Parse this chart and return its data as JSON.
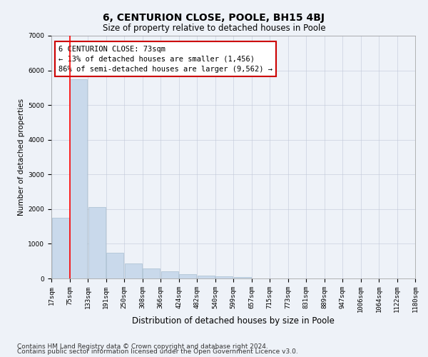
{
  "title": "6, CENTURION CLOSE, POOLE, BH15 4BJ",
  "subtitle": "Size of property relative to detached houses in Poole",
  "xlabel": "Distribution of detached houses by size in Poole",
  "ylabel": "Number of detached properties",
  "footnote1": "Contains HM Land Registry data © Crown copyright and database right 2024.",
  "footnote2": "Contains public sector information licensed under the Open Government Licence v3.0.",
  "annotation_title": "6 CENTURION CLOSE: 73sqm",
  "annotation_line1": "← 13% of detached houses are smaller (1,456)",
  "annotation_line2": "86% of semi-detached houses are larger (9,562) →",
  "bar_heights": [
    1750,
    5750,
    2050,
    750,
    430,
    280,
    200,
    130,
    90,
    60,
    40,
    0,
    0,
    0,
    0,
    0,
    0,
    0,
    0,
    0
  ],
  "tick_labels": [
    "17sqm",
    "75sqm",
    "133sqm",
    "191sqm",
    "250sqm",
    "308sqm",
    "366sqm",
    "424sqm",
    "482sqm",
    "540sqm",
    "599sqm",
    "657sqm",
    "715sqm",
    "773sqm",
    "831sqm",
    "889sqm",
    "947sqm",
    "1006sqm",
    "1064sqm",
    "1122sqm",
    "1180sqm"
  ],
  "bar_color": "#c9d9eb",
  "bar_edge_color": "#a8bfd0",
  "redline_bar_index": 1,
  "ylim": [
    0,
    7000
  ],
  "yticks": [
    0,
    1000,
    2000,
    3000,
    4000,
    5000,
    6000,
    7000
  ],
  "annotation_box_facecolor": "#ffffff",
  "annotation_box_edgecolor": "#cc0000",
  "bg_color": "#eef2f8",
  "plot_bg_color": "#eef2f8",
  "grid_color": "#c0c8d8",
  "title_fontsize": 10,
  "subtitle_fontsize": 8.5,
  "ylabel_fontsize": 7.5,
  "xlabel_fontsize": 8.5,
  "tick_fontsize": 6.5,
  "annotation_fontsize": 7.5,
  "footnote_fontsize": 6.5
}
